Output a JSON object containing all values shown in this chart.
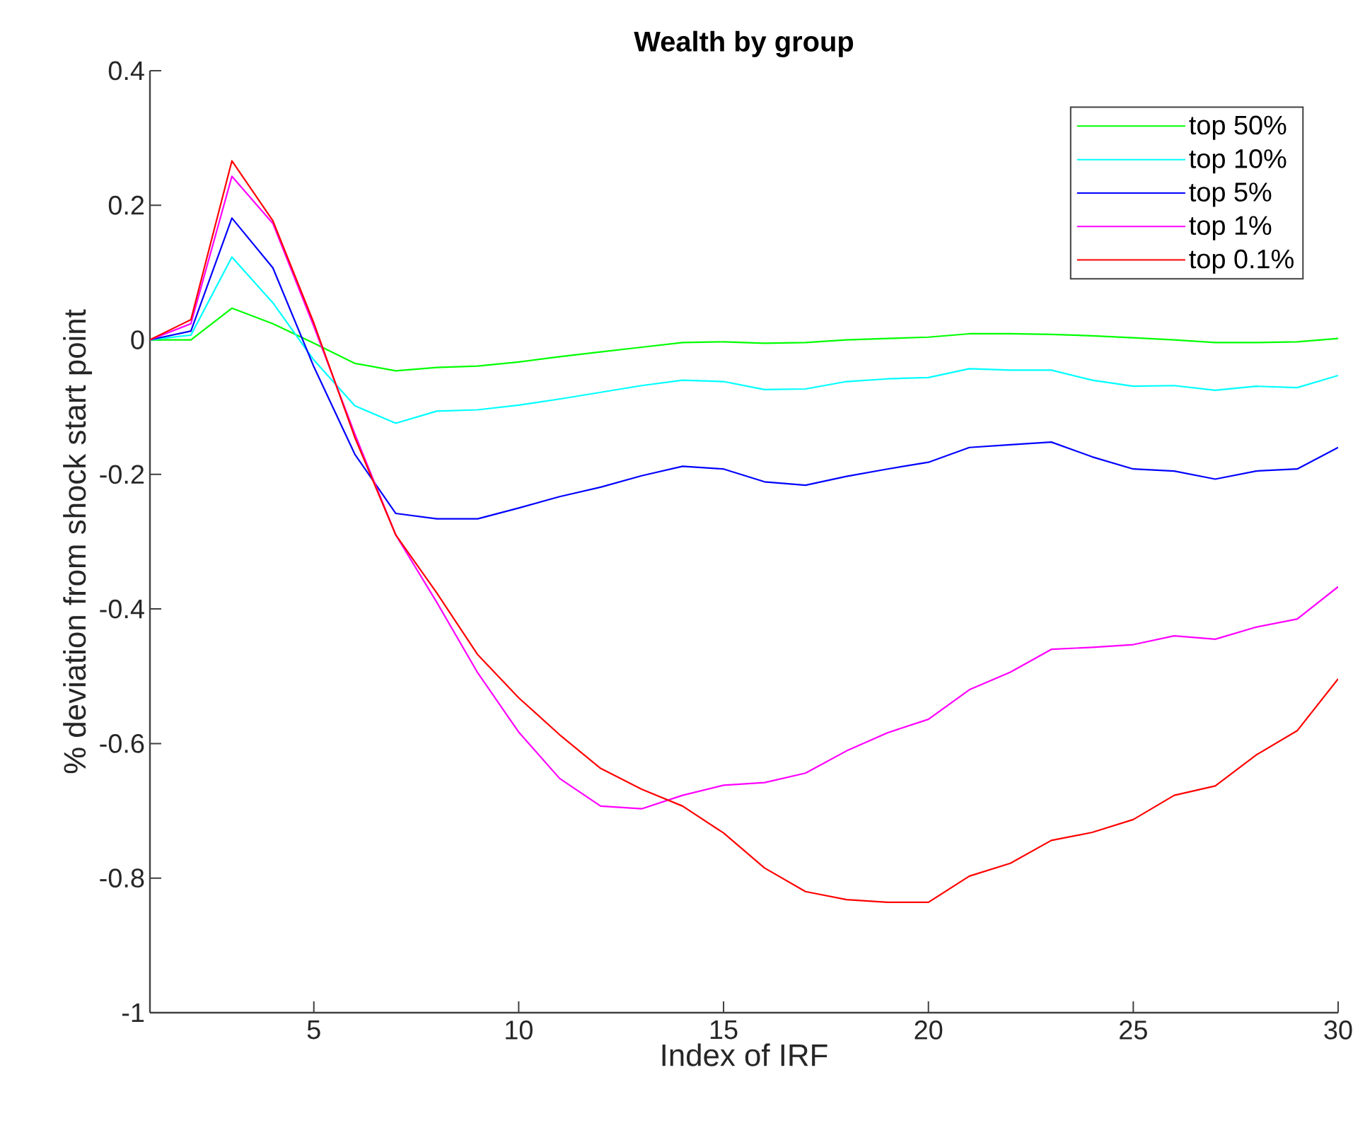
{
  "chart_data": {
    "type": "line",
    "title": "Wealth by group",
    "xlabel": "Index of IRF",
    "ylabel": "% deviation from shock start point",
    "x": [
      1,
      2,
      3,
      4,
      5,
      6,
      7,
      8,
      9,
      10,
      11,
      12,
      13,
      14,
      15,
      16,
      17,
      18,
      19,
      20,
      21,
      22,
      23,
      24,
      25,
      26,
      27,
      28,
      29,
      30
    ],
    "series": [
      {
        "name": "top 50%",
        "color": "#00ff00",
        "values": [
          0,
          0,
          0.047,
          0.024,
          -0.005,
          -0.035,
          -0.046,
          -0.041,
          -0.039,
          -0.033,
          -0.025,
          -0.018,
          -0.011,
          -0.004,
          -0.003,
          -0.005,
          -0.004,
          0,
          0.002,
          0.004,
          0.009,
          0.009,
          0.008,
          0.006,
          0.003,
          0,
          -0.004,
          -0.004,
          -0.003,
          0.002
        ]
      },
      {
        "name": "top 10%",
        "color": "#00ffff",
        "values": [
          0,
          0.007,
          0.123,
          0.055,
          -0.03,
          -0.098,
          -0.124,
          -0.106,
          -0.104,
          -0.097,
          -0.088,
          -0.078,
          -0.068,
          -0.06,
          -0.062,
          -0.074,
          -0.073,
          -0.062,
          -0.058,
          -0.056,
          -0.043,
          -0.045,
          -0.045,
          -0.06,
          -0.069,
          -0.068,
          -0.075,
          -0.069,
          -0.071,
          -0.053
        ]
      },
      {
        "name": "top 5%",
        "color": "#0000ff",
        "values": [
          0,
          0.013,
          0.181,
          0.107,
          -0.04,
          -0.17,
          -0.258,
          -0.266,
          -0.266,
          -0.25,
          -0.233,
          -0.219,
          -0.202,
          -0.188,
          -0.192,
          -0.211,
          -0.216,
          -0.203,
          -0.192,
          -0.182,
          -0.16,
          -0.156,
          -0.152,
          -0.174,
          -0.192,
          -0.195,
          -0.207,
          -0.195,
          -0.192,
          -0.16
        ]
      },
      {
        "name": "top 1%",
        "color": "#ff00ff",
        "values": [
          0,
          0.024,
          0.243,
          0.173,
          0.02,
          -0.14,
          -0.29,
          -0.39,
          -0.495,
          -0.583,
          -0.652,
          -0.693,
          -0.697,
          -0.677,
          -0.662,
          -0.658,
          -0.644,
          -0.611,
          -0.584,
          -0.564,
          -0.52,
          -0.494,
          -0.46,
          -0.457,
          -0.453,
          -0.44,
          -0.445,
          -0.427,
          -0.415,
          -0.367
        ]
      },
      {
        "name": "top 0.1%",
        "color": "#ff0000",
        "values": [
          0,
          0.03,
          0.266,
          0.177,
          0.025,
          -0.145,
          -0.29,
          -0.376,
          -0.468,
          -0.532,
          -0.587,
          -0.637,
          -0.668,
          -0.693,
          -0.733,
          -0.785,
          -0.82,
          -0.832,
          -0.836,
          -0.836,
          -0.797,
          -0.778,
          -0.744,
          -0.732,
          -0.713,
          -0.677,
          -0.663,
          -0.617,
          -0.581,
          -0.504
        ]
      }
    ],
    "xlim": [
      1,
      30
    ],
    "xticks": [
      5,
      10,
      15,
      20,
      25,
      30
    ],
    "ylim": [
      -1,
      0.4
    ],
    "yticks": [
      -1,
      -0.8,
      -0.6,
      -0.4,
      -0.2,
      0,
      0.2,
      0.4
    ],
    "grid": false,
    "legend": "top right",
    "marker": "none",
    "line_style": "solid"
  }
}
